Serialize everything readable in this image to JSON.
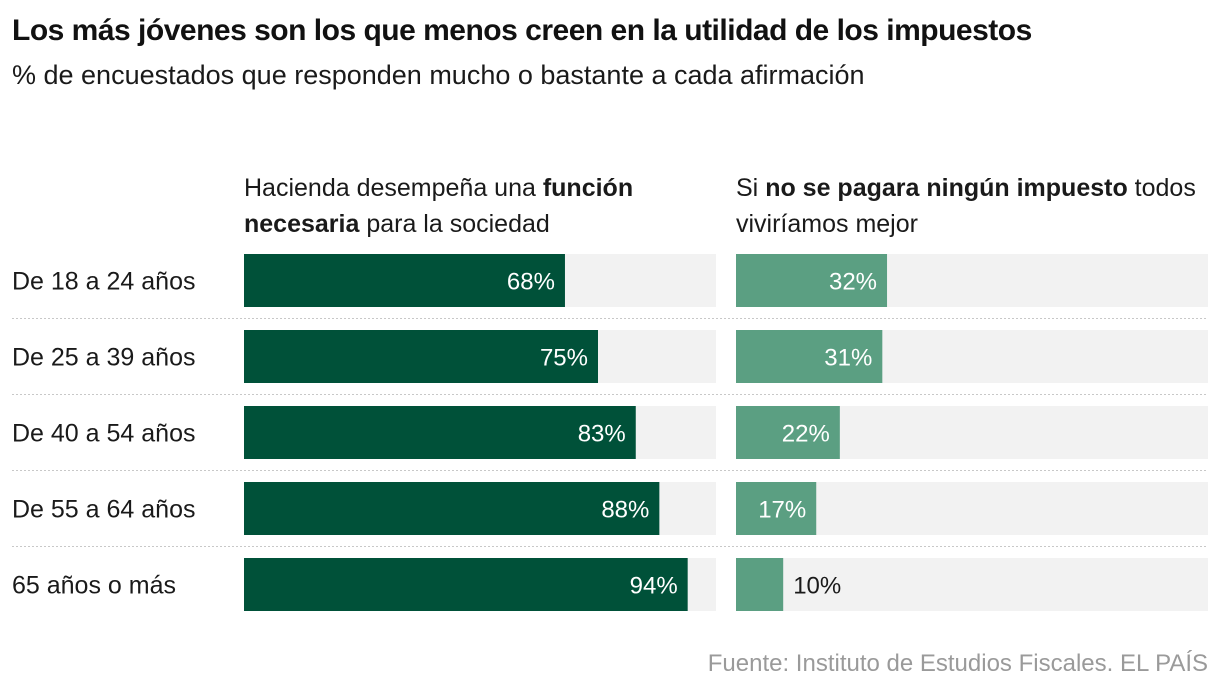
{
  "title": "Los más jóvenes son los que menos creen en la utilidad de los impuestos",
  "subtitle": "% de encuestados que responden mucho o bastante a cada afirmación",
  "panels": [
    {
      "pre": "Hacienda desempeña una ",
      "bold": "función necesaria",
      "post": " para la sociedad"
    },
    {
      "pre": "Si ",
      "bold": "no se pagara ningún impuesto",
      "post": " todos viviríamos mejor"
    }
  ],
  "source": "Fuente: Instituto de Estudios Fiscales. EL PAÍS",
  "colors": {
    "dark": "#005139",
    "light": "#5b9f82",
    "track": "#f2f2f2",
    "divider": "#c8c8c8"
  },
  "chart_data": {
    "type": "bar",
    "orientation": "horizontal",
    "categories": [
      "De 18 a 24 años",
      "De 25 a 39 años",
      "De 40 a 54 años",
      "De 55 a 64 años",
      "65 años o más"
    ],
    "xlim": [
      0,
      100
    ],
    "series": [
      {
        "name": "Hacienda desempeña una función necesaria para la sociedad",
        "values": [
          68,
          75,
          83,
          88,
          94
        ],
        "labels": [
          "68%",
          "75%",
          "83%",
          "88%",
          "94%"
        ]
      },
      {
        "name": "Si no se pagara ningún impuesto todos viviríamos mejor",
        "values": [
          32,
          31,
          22,
          17,
          10
        ],
        "labels": [
          "32%",
          "31%",
          "22%",
          "17%",
          "10%"
        ]
      }
    ]
  }
}
